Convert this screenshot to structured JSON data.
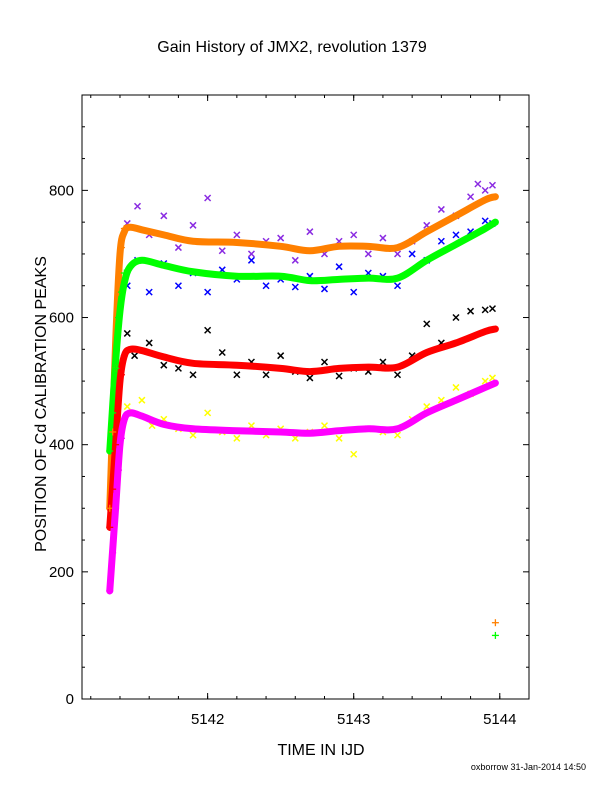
{
  "chart_data": {
    "type": "scatter",
    "title": "Gain History of JMX2, revolution 1379",
    "xlabel": "TIME IN IJD",
    "ylabel": "POSITION OF Cd CALIBRATION PEAKS",
    "footer": "oxborrow 31-Jan-2014 14:50",
    "xlim": [
      5141.14,
      5144.2
    ],
    "ylim": [
      0,
      950
    ],
    "x_ticks": [
      5142,
      5143,
      5144
    ],
    "x_tick_labels": [
      "5142",
      "5143",
      "5144"
    ],
    "y_ticks": [
      0,
      200,
      400,
      600,
      800
    ],
    "y_tick_labels": [
      "0",
      "200",
      "400",
      "600",
      "800"
    ],
    "grid": false,
    "fits": [
      {
        "color": "#ff8000",
        "x": [
          5141.33,
          5141.37,
          5141.4,
          5141.43,
          5141.47,
          5141.55,
          5141.7,
          5141.9,
          5142.2,
          5142.5,
          5142.7,
          5142.9,
          5143.1,
          5143.3,
          5143.5,
          5143.7,
          5143.9,
          5143.97
        ],
        "y": [
          300,
          560,
          700,
          735,
          742,
          738,
          730,
          720,
          718,
          712,
          705,
          712,
          712,
          710,
          735,
          760,
          785,
          790
        ]
      },
      {
        "color": "#00ff00",
        "x": [
          5141.33,
          5141.37,
          5141.4,
          5141.43,
          5141.47,
          5141.55,
          5141.7,
          5141.9,
          5142.2,
          5142.5,
          5142.7,
          5142.9,
          5143.1,
          5143.3,
          5143.5,
          5143.7,
          5143.9,
          5143.97
        ],
        "y": [
          390,
          530,
          610,
          655,
          680,
          690,
          682,
          672,
          665,
          665,
          658,
          660,
          662,
          662,
          690,
          715,
          740,
          750
        ]
      },
      {
        "color": "#ff0000",
        "x": [
          5141.33,
          5141.37,
          5141.4,
          5141.43,
          5141.47,
          5141.55,
          5141.7,
          5141.9,
          5142.2,
          5142.5,
          5142.7,
          5142.9,
          5143.1,
          5143.3,
          5143.5,
          5143.7,
          5143.9,
          5143.97
        ],
        "y": [
          270,
          400,
          500,
          540,
          550,
          548,
          538,
          528,
          525,
          520,
          515,
          520,
          522,
          522,
          545,
          560,
          578,
          582
        ]
      },
      {
        "color": "#ff00ff",
        "x": [
          5141.33,
          5141.37,
          5141.4,
          5141.43,
          5141.47,
          5141.55,
          5141.7,
          5141.9,
          5142.2,
          5142.5,
          5142.7,
          5142.9,
          5143.1,
          5143.3,
          5143.5,
          5143.7,
          5143.9,
          5143.97
        ],
        "y": [
          170,
          300,
          400,
          440,
          450,
          445,
          432,
          425,
          422,
          420,
          418,
          422,
          425,
          425,
          450,
          470,
          490,
          497
        ]
      }
    ],
    "scatter": [
      {
        "color": "#8a2be2",
        "marker": "x",
        "x": [
          5141.45,
          5141.52,
          5141.6,
          5141.7,
          5141.8,
          5141.9,
          5142.0,
          5142.1,
          5142.2,
          5142.3,
          5142.4,
          5142.5,
          5142.6,
          5142.7,
          5142.8,
          5142.9,
          5143.0,
          5143.1,
          5143.2,
          5143.3,
          5143.4,
          5143.5,
          5143.6,
          5143.7,
          5143.8,
          5143.85,
          5143.9,
          5143.95
        ],
        "y": [
          748,
          775,
          730,
          760,
          710,
          745,
          788,
          705,
          730,
          700,
          720,
          725,
          690,
          735,
          700,
          720,
          730,
          700,
          725,
          700,
          720,
          745,
          770,
          760,
          790,
          810,
          800,
          808
        ]
      },
      {
        "color": "#0000ff",
        "marker": "x",
        "x": [
          5141.45,
          5141.52,
          5141.6,
          5141.7,
          5141.8,
          5141.9,
          5142.0,
          5142.1,
          5142.2,
          5142.3,
          5142.4,
          5142.5,
          5142.6,
          5142.7,
          5142.8,
          5142.9,
          5143.0,
          5143.1,
          5143.2,
          5143.3,
          5143.4,
          5143.5,
          5143.6,
          5143.7,
          5143.8,
          5143.9,
          5143.95
        ],
        "y": [
          650,
          690,
          640,
          685,
          650,
          670,
          640,
          675,
          660,
          690,
          650,
          660,
          648,
          665,
          645,
          680,
          640,
          670,
          665,
          650,
          700,
          690,
          720,
          730,
          735,
          752,
          748
        ]
      },
      {
        "color": "#000000",
        "marker": "x",
        "x": [
          5141.45,
          5141.5,
          5141.6,
          5141.7,
          5141.8,
          5141.9,
          5142.0,
          5142.1,
          5142.2,
          5142.3,
          5142.4,
          5142.5,
          5142.6,
          5142.7,
          5142.8,
          5142.9,
          5143.0,
          5143.1,
          5143.2,
          5143.3,
          5143.4,
          5143.5,
          5143.6,
          5143.7,
          5143.8,
          5143.9,
          5143.95
        ],
        "y": [
          575,
          540,
          560,
          525,
          520,
          510,
          580,
          545,
          510,
          530,
          510,
          540,
          515,
          505,
          530,
          508,
          520,
          515,
          530,
          510,
          540,
          590,
          560,
          600,
          610,
          612,
          614
        ]
      },
      {
        "color": "#ffff00",
        "marker": "x",
        "x": [
          5141.45,
          5141.55,
          5141.62,
          5141.7,
          5141.8,
          5141.9,
          5142.0,
          5142.1,
          5142.2,
          5142.3,
          5142.4,
          5142.5,
          5142.6,
          5142.7,
          5142.8,
          5142.9,
          5143.0,
          5143.1,
          5143.2,
          5143.3,
          5143.4,
          5143.5,
          5143.6,
          5143.7,
          5143.8,
          5143.9,
          5143.95
        ],
        "y": [
          460,
          470,
          430,
          440,
          425,
          415,
          450,
          420,
          410,
          430,
          415,
          425,
          410,
          420,
          430,
          410,
          385,
          425,
          420,
          415,
          440,
          460,
          470,
          490,
          480,
          500,
          505
        ]
      }
    ],
    "rise_markers": [
      {
        "color": "#ff8000",
        "x": [
          5141.33,
          5141.35,
          5141.37,
          5141.39,
          5141.41,
          5141.43
        ],
        "y": [
          300,
          420,
          520,
          640,
          710,
          740
        ]
      },
      {
        "color": "#00ff00",
        "x": [
          5141.33,
          5141.35,
          5141.37,
          5141.39,
          5141.41,
          5141.43
        ],
        "y": [
          390,
          450,
          520,
          600,
          640,
          670
        ]
      },
      {
        "color": "#ff0000",
        "x": [
          5141.33,
          5141.35,
          5141.37,
          5141.39,
          5141.41,
          5141.43
        ],
        "y": [
          270,
          330,
          400,
          470,
          510,
          540
        ]
      },
      {
        "color": "#ff00ff",
        "x": [
          5141.33,
          5141.35,
          5141.37,
          5141.39,
          5141.41,
          5141.43
        ],
        "y": [
          170,
          230,
          300,
          360,
          410,
          440
        ]
      }
    ],
    "legend_markers": [
      {
        "color": "#ff8000",
        "x": 5143.97,
        "y": 120
      },
      {
        "color": "#00ff00",
        "x": 5143.97,
        "y": 100
      }
    ]
  }
}
